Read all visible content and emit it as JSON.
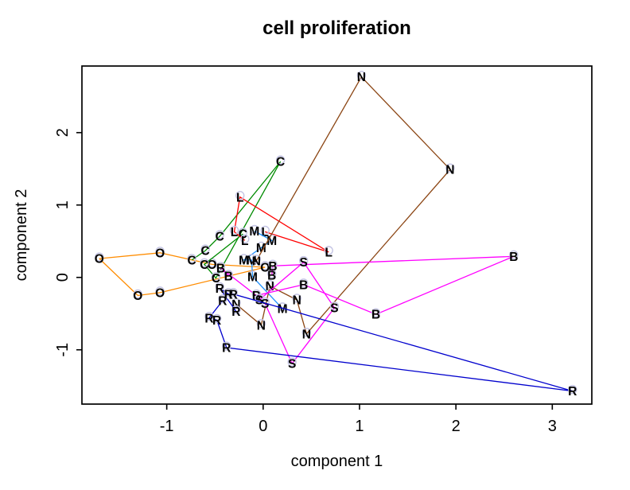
{
  "chart_data": {
    "type": "scatter",
    "title": "cell proliferation",
    "xlabel": "component 1",
    "ylabel": "component 2",
    "xlim": [
      -1.88,
      3.41
    ],
    "ylim": [
      -1.75,
      2.92
    ],
    "x_ticks": [
      -1,
      0,
      1,
      2,
      3
    ],
    "y_ticks": [
      -1,
      0,
      1,
      2
    ],
    "grid": false,
    "legend": "none",
    "marker_style": "colored letter labels with faint lavender halo circles, points of each group joined by lines",
    "halo_color": "#C4C4E4",
    "series": [
      {
        "name": "O",
        "letter": "O",
        "color": "#FF8C00",
        "closed": true,
        "points": [
          [
            -1.7,
            0.26
          ],
          [
            -1.07,
            0.34
          ],
          [
            -0.53,
            0.18
          ],
          [
            0.02,
            0.14
          ],
          [
            -1.07,
            -0.21
          ],
          [
            -1.3,
            -0.25
          ]
        ]
      },
      {
        "name": "C",
        "letter": "C",
        "color": "#008B00",
        "closed": false,
        "points": [
          [
            -0.74,
            0.24
          ],
          [
            -0.6,
            0.37
          ],
          [
            -0.45,
            0.57
          ],
          [
            0.18,
            1.6
          ],
          [
            -0.49,
            -0.01
          ],
          [
            -0.61,
            0.18
          ],
          [
            -0.21,
            0.6
          ]
        ]
      },
      {
        "name": "L",
        "letter": "L",
        "color": "#FF0000",
        "closed": false,
        "points": [
          [
            -0.19,
            0.51
          ],
          [
            -0.3,
            0.63
          ],
          [
            -0.24,
            1.11
          ],
          [
            0.68,
            0.35
          ],
          [
            0.02,
            0.63
          ]
        ]
      },
      {
        "name": "M",
        "letter": "M",
        "color": "#1E90FF",
        "closed": false,
        "points": [
          [
            -0.09,
            0.64
          ],
          [
            0.09,
            0.51
          ],
          [
            -0.02,
            0.41
          ],
          [
            -0.2,
            0.24
          ],
          [
            -0.12,
            0.24
          ],
          [
            -0.11,
            0.01
          ],
          [
            0.2,
            -0.43
          ]
        ]
      },
      {
        "name": "N",
        "letter": "N",
        "color": "#8B4513",
        "closed": false,
        "points": [
          [
            -0.07,
            0.23
          ],
          [
            1.02,
            2.77
          ],
          [
            1.94,
            1.49
          ],
          [
            0.45,
            -0.78
          ],
          [
            0.35,
            -0.31
          ],
          [
            0.07,
            -0.12
          ],
          [
            -0.02,
            -0.66
          ],
          [
            -0.28,
            -0.37
          ]
        ]
      },
      {
        "name": "B",
        "letter": "B",
        "color": "#FF00FF",
        "closed": false,
        "points": [
          [
            -0.36,
            0.02
          ],
          [
            -0.44,
            0.13
          ],
          [
            -0.07,
            -0.25
          ],
          [
            0.42,
            -0.1
          ],
          [
            1.17,
            -0.51
          ],
          [
            2.6,
            0.29
          ],
          [
            0.1,
            0.16
          ],
          [
            0.09,
            0.03
          ]
        ]
      },
      {
        "name": "S",
        "letter": "S",
        "color": "#FF00FF",
        "closed": false,
        "points": [
          [
            -0.04,
            -0.31
          ],
          [
            0.42,
            0.21
          ],
          [
            0.74,
            -0.42
          ],
          [
            0.3,
            -1.19
          ],
          [
            0.02,
            -0.36
          ]
        ]
      },
      {
        "name": "R",
        "letter": "R",
        "color": "#0000CD",
        "closed": false,
        "points": [
          [
            -0.28,
            -0.47
          ],
          [
            -0.45,
            -0.15
          ],
          [
            -0.36,
            -0.23
          ],
          [
            -0.31,
            -0.23
          ],
          [
            3.21,
            -1.57
          ],
          [
            -0.38,
            -0.97
          ],
          [
            -0.48,
            -0.59
          ],
          [
            -0.56,
            -0.56
          ],
          [
            -0.42,
            -0.32
          ]
        ]
      }
    ]
  }
}
